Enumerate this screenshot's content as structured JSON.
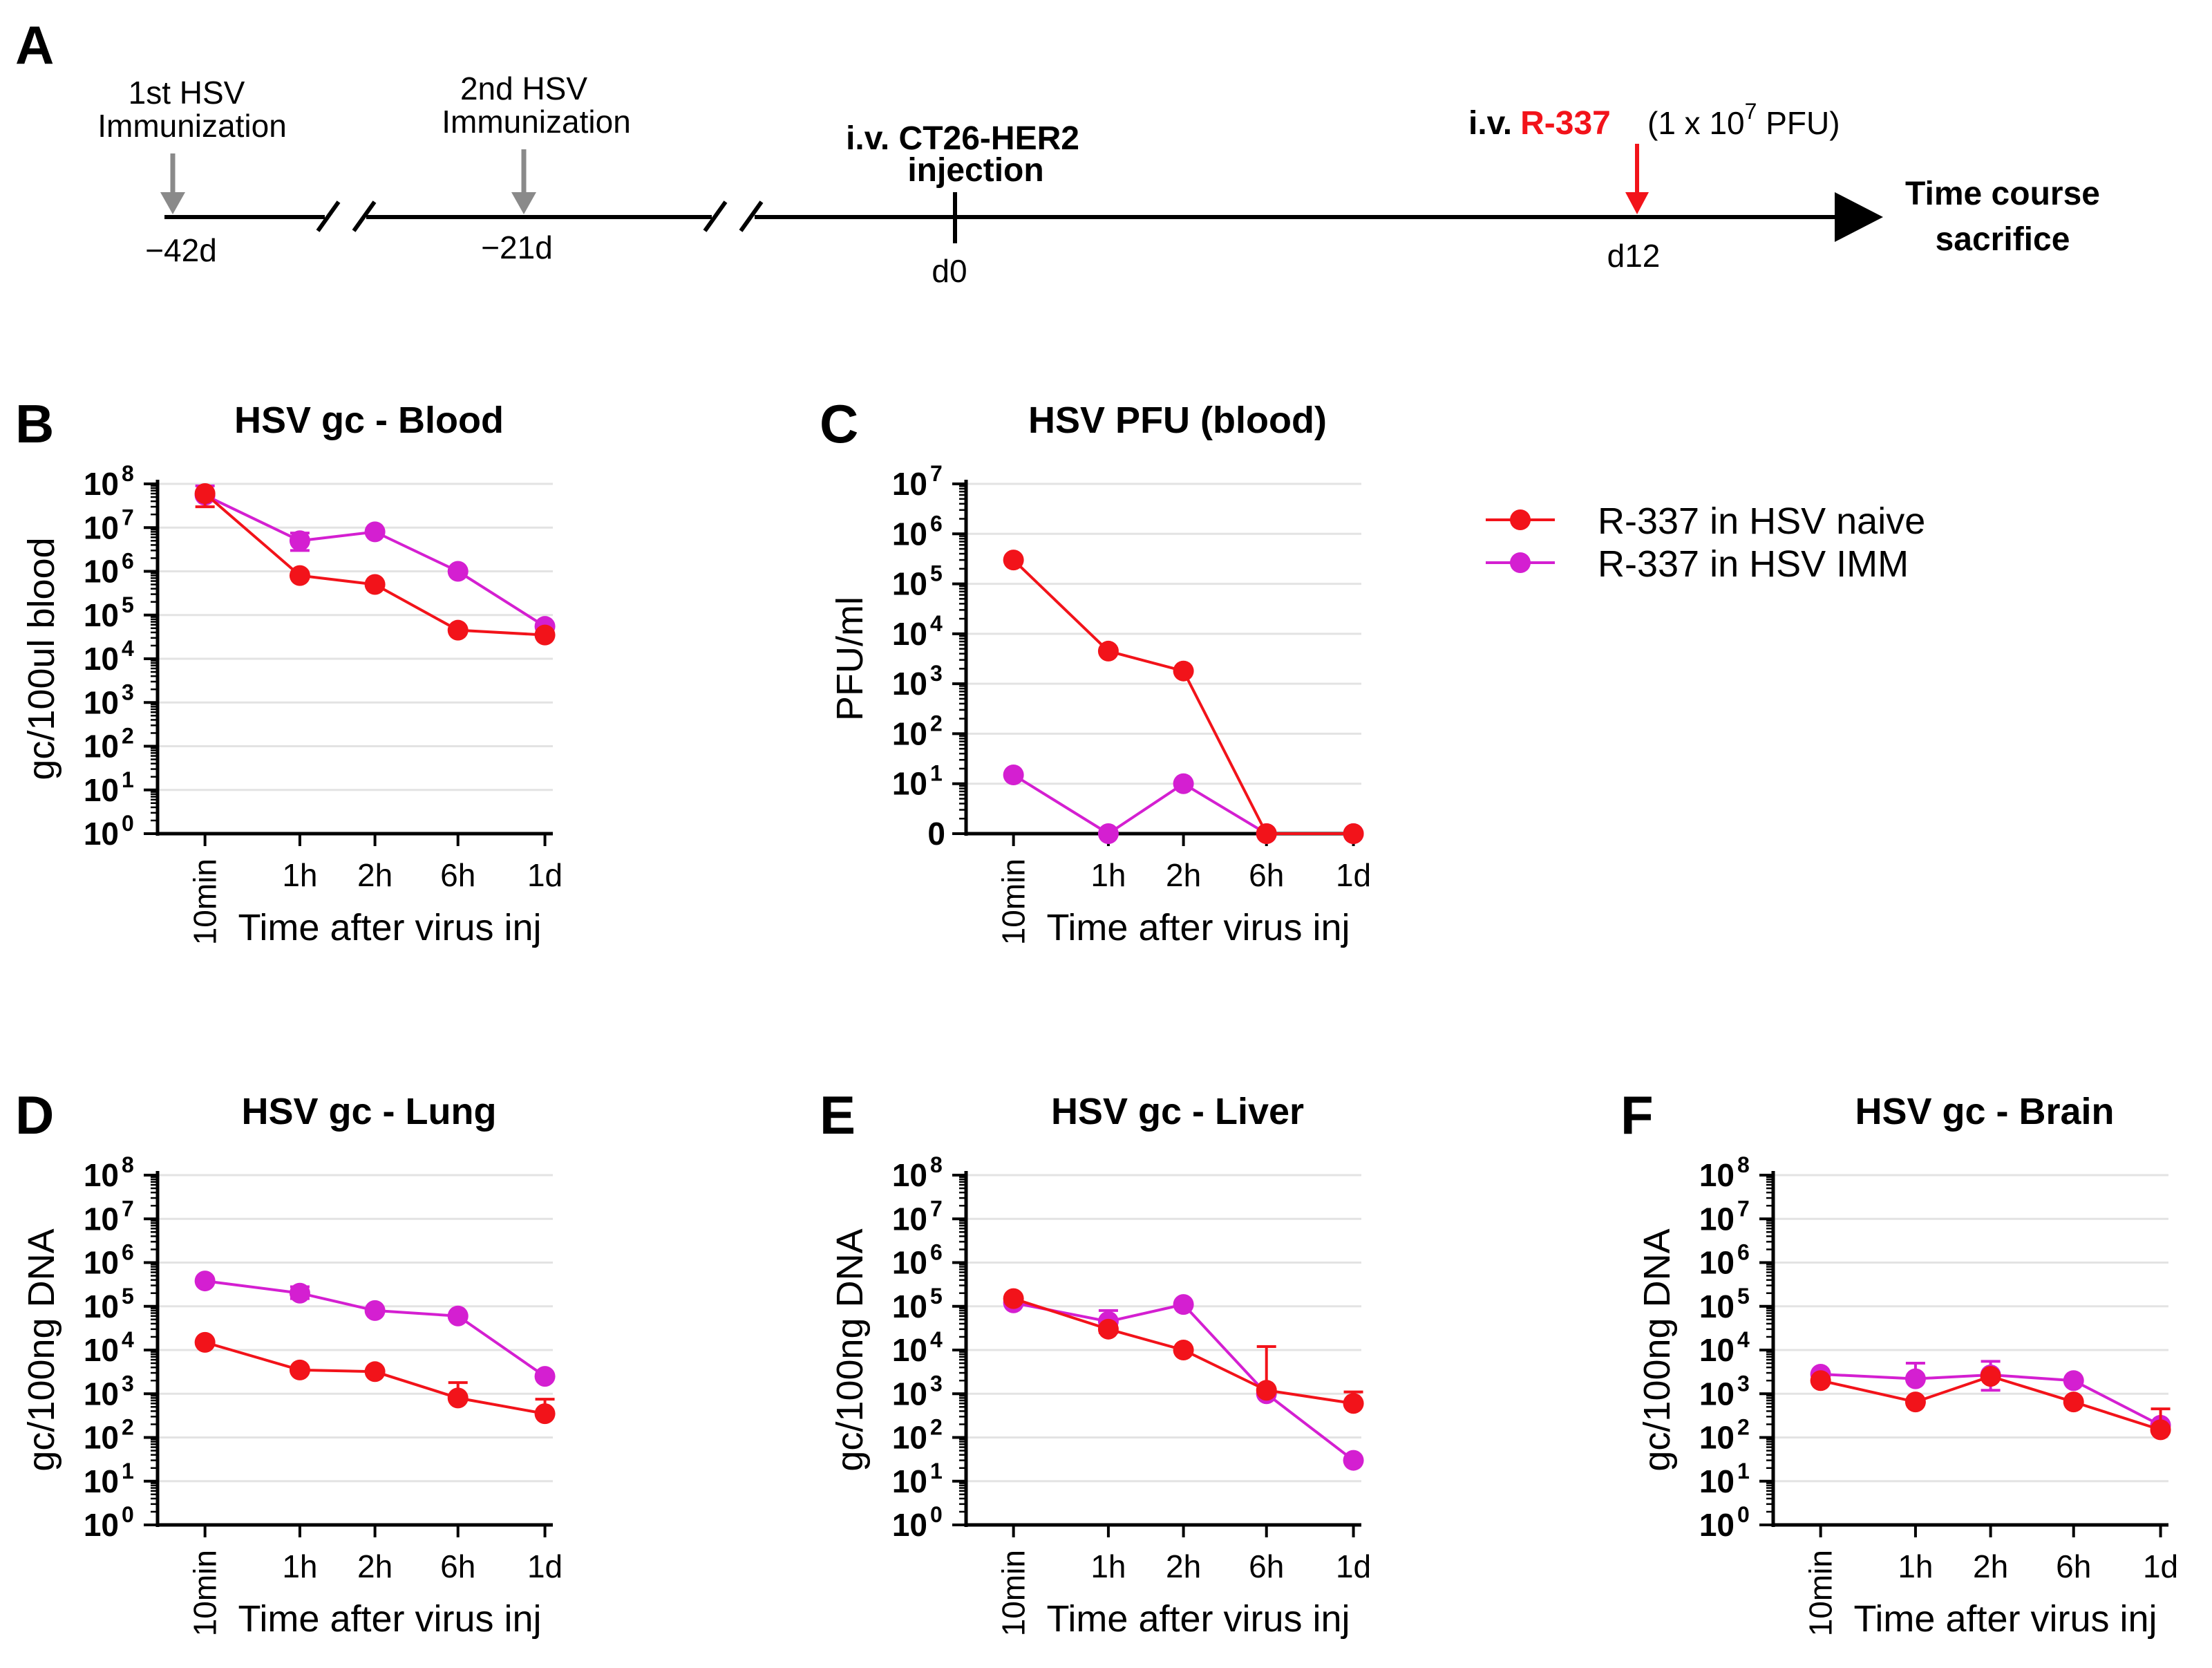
{
  "colors": {
    "naive": "#f2131a",
    "imm": "#d41fd1",
    "arrow_gray": "#8a8a8a",
    "grid": "#e3e3e3",
    "axis": "#000000"
  },
  "panel_a": {
    "label": "A",
    "events": [
      {
        "line1": "1st HSV",
        "line2": "Immunization",
        "day": "−42d"
      },
      {
        "line1": "2nd HSV",
        "line2": "Immunization",
        "day": "−21d"
      },
      {
        "line1": "i.v. CT26-HER2",
        "line2": "injection",
        "day": "d0"
      },
      {
        "line1": "",
        "line2": "",
        "day": "d12"
      }
    ],
    "virus_prefix": "i.v.",
    "virus_name": "R-337",
    "virus_dose_pre": "(1 x 10",
    "virus_dose_exp": "7",
    "virus_dose_post": " PFU)",
    "end_label_1": "Time course",
    "end_label_2": "sacrifice"
  },
  "legend": {
    "naive": "R-337 in HSV naive",
    "imm": "R-337 in HSV IMM"
  },
  "chart_data": [
    {
      "panel": "B",
      "type": "line",
      "title": "HSV gc - Blood",
      "ylabel": "gc/100ul blood",
      "xlabel": "Time after virus inj",
      "yscale": "log10",
      "ylim_exp": [
        0,
        8
      ],
      "categories": [
        "10min",
        "1h",
        "2h",
        "6h",
        "1d"
      ],
      "series": [
        {
          "name": "R-337 in HSV naive",
          "values": [
            60000000,
            800000,
            500000,
            45000,
            35000
          ],
          "err_up": [
            null,
            null,
            null,
            null,
            null
          ],
          "err_down": [
            30000000,
            null,
            null,
            null,
            null
          ]
        },
        {
          "name": "R-337 in HSV IMM",
          "values": [
            55000000,
            5000000,
            8000000,
            1000000,
            55000
          ],
          "err_up": [
            90000000,
            7500000,
            null,
            null,
            null
          ],
          "err_down": [
            null,
            3000000,
            null,
            null,
            null
          ]
        }
      ]
    },
    {
      "panel": "C",
      "type": "line",
      "title": "HSV PFU (blood)",
      "ylabel": "PFU/ml",
      "xlabel": "Time after virus inj",
      "yscale": "log10-with-zero",
      "ylim_exp": [
        0,
        7
      ],
      "zero_label": "0",
      "categories": [
        "10min",
        "1h",
        "2h",
        "6h",
        "1d"
      ],
      "series": [
        {
          "name": "R-337 in HSV naive",
          "values": [
            300000,
            4500,
            1800,
            0,
            0
          ],
          "err_up": [
            null,
            null,
            null,
            null,
            null
          ],
          "err_down": [
            null,
            null,
            null,
            null,
            null
          ]
        },
        {
          "name": "R-337 in HSV IMM",
          "values": [
            15,
            0,
            10,
            0,
            0
          ],
          "err_up": [
            null,
            null,
            null,
            null,
            null
          ],
          "err_down": [
            null,
            null,
            null,
            null,
            null
          ]
        }
      ]
    },
    {
      "panel": "D",
      "type": "line",
      "title": "HSV gc - Lung",
      "ylabel": "gc/100ng DNA",
      "xlabel": "Time after virus inj",
      "yscale": "log10",
      "ylim_exp": [
        0,
        8
      ],
      "categories": [
        "10min",
        "1h",
        "2h",
        "6h",
        "1d"
      ],
      "series": [
        {
          "name": "R-337 in HSV naive",
          "values": [
            15000,
            3500,
            3200,
            800,
            350
          ],
          "err_up": [
            null,
            null,
            null,
            1800,
            750
          ],
          "err_down": [
            null,
            null,
            null,
            null,
            null
          ]
        },
        {
          "name": "R-337 in HSV IMM",
          "values": [
            380000,
            200000,
            80000,
            60000,
            2500
          ],
          "err_up": [
            null,
            280000,
            null,
            null,
            null
          ],
          "err_down": [
            null,
            150000,
            null,
            null,
            null
          ]
        }
      ]
    },
    {
      "panel": "E",
      "type": "line",
      "title": "HSV gc - Liver",
      "ylabel": "gc/100ng DNA",
      "xlabel": "Time after virus inj",
      "yscale": "log10",
      "ylim_exp": [
        0,
        8
      ],
      "categories": [
        "10min",
        "1h",
        "2h",
        "6h",
        "1d"
      ],
      "series": [
        {
          "name": "R-337 in HSV naive",
          "values": [
            150000,
            30000,
            10000,
            1200,
            600
          ],
          "err_up": [
            null,
            null,
            null,
            12000,
            1100
          ],
          "err_down": [
            null,
            null,
            null,
            null,
            null
          ]
        },
        {
          "name": "R-337 in HSV IMM",
          "values": [
            120000,
            45000,
            110000,
            1000,
            30
          ],
          "err_up": [
            null,
            80000,
            null,
            null,
            null
          ],
          "err_down": [
            null,
            25000,
            null,
            null,
            null
          ]
        }
      ]
    },
    {
      "panel": "F",
      "type": "line",
      "title": "HSV gc - Brain",
      "ylabel": "gc/100ng DNA",
      "xlabel": "Time after virus inj",
      "yscale": "log10",
      "ylim_exp": [
        0,
        8
      ],
      "categories": [
        "10min",
        "1h",
        "2h",
        "6h",
        "1d"
      ],
      "series": [
        {
          "name": "R-337 in HSV naive",
          "values": [
            2000,
            650,
            2500,
            650,
            150
          ],
          "err_up": [
            null,
            null,
            null,
            null,
            450
          ],
          "err_down": [
            null,
            null,
            null,
            null,
            null
          ]
        },
        {
          "name": "R-337 in HSV IMM",
          "values": [
            2800,
            2200,
            2700,
            2000,
            190
          ],
          "err_up": [
            null,
            5000,
            5500,
            null,
            null
          ],
          "err_down": [
            null,
            null,
            1200,
            null,
            null
          ]
        }
      ]
    }
  ]
}
